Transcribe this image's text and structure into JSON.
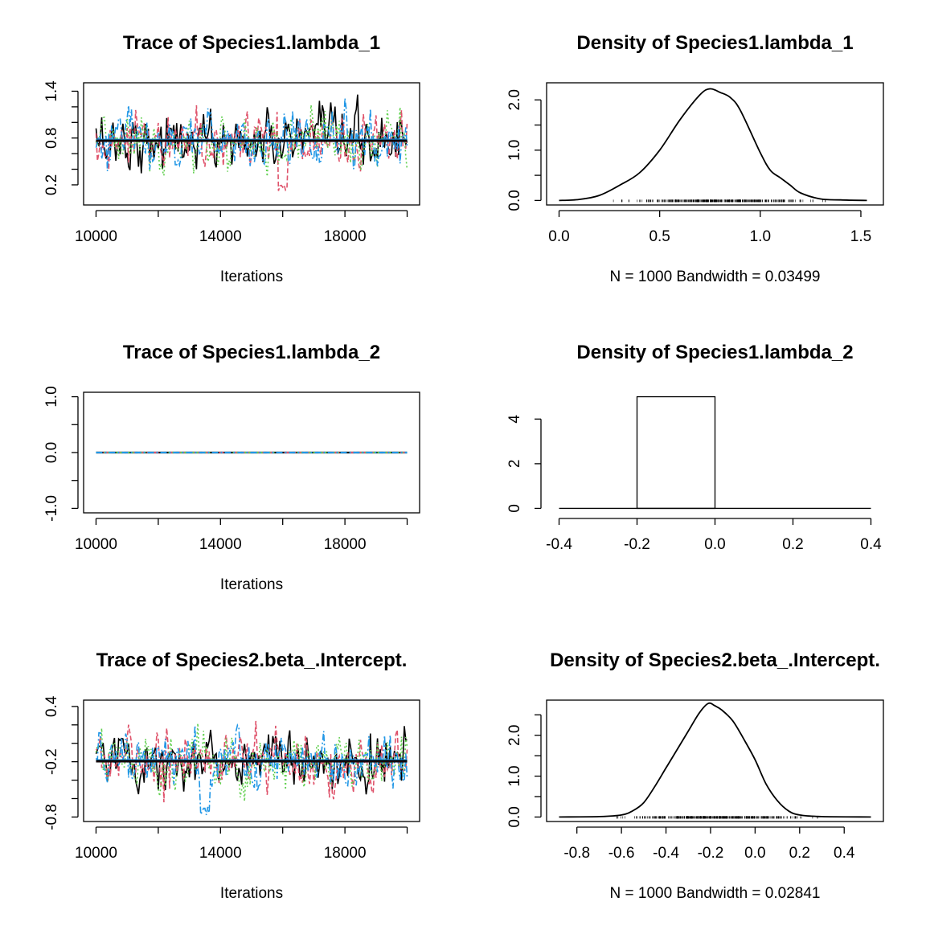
{
  "colors": {
    "chain1": "#000000",
    "chain2": "#DF536B",
    "chain3": "#61D04F",
    "chain4": "#2297E6"
  },
  "chart_data": [
    {
      "type": "line",
      "title": "Trace of Species1.lambda_1",
      "xlabel": "Iterations",
      "xlim": [
        10000,
        20000
      ],
      "ylim": [
        0.0,
        1.45
      ],
      "xticks": [
        10000,
        14000,
        18000
      ],
      "yticks": [
        0.2,
        0.8,
        1.4
      ],
      "yminor": [
        0.4,
        0.6,
        1.0,
        1.2
      ],
      "xtick_labels": [
        "10000",
        "14000",
        "18000"
      ],
      "ytick_labels": [
        "0.2",
        "0.8",
        "1.4"
      ],
      "trace": {
        "chains": 4,
        "mean": 0.76,
        "sd": 0.17,
        "low": 0.1,
        "high": 1.43,
        "dip_chain": 2,
        "dip_x": 16000,
        "dip_y": 0.1
      },
      "smooth_mean": 0.77
    },
    {
      "type": "line",
      "title": "Density of Species1.lambda_1",
      "xlabel": "N = 1000   Bandwidth = 0.03499",
      "xlim": [
        0.0,
        1.55
      ],
      "ylim": [
        0.0,
        2.25
      ],
      "xticks": [
        0.0,
        0.5,
        1.0,
        1.5
      ],
      "yticks": [
        0.0,
        1.0,
        2.0
      ],
      "yminor": [
        0.5,
        1.5
      ],
      "xtick_labels": [
        "0.0",
        "0.5",
        "1.0",
        "1.5"
      ],
      "ytick_labels": [
        "0.0",
        "1.0",
        "2.0"
      ],
      "x": [
        0.0,
        0.1,
        0.2,
        0.3,
        0.4,
        0.5,
        0.6,
        0.7,
        0.75,
        0.8,
        0.85,
        0.9,
        1.0,
        1.05,
        1.1,
        1.15,
        1.2,
        1.3,
        1.4,
        1.53
      ],
      "y": [
        0.0,
        0.02,
        0.1,
        0.3,
        0.55,
        1.0,
        1.6,
        2.1,
        2.22,
        2.15,
        2.05,
        1.8,
        0.95,
        0.6,
        0.45,
        0.3,
        0.15,
        0.03,
        0.01,
        0.0
      ],
      "rug": {
        "low": 0.27,
        "high": 1.33
      }
    },
    {
      "type": "line",
      "title": "Trace of Species1.lambda_2",
      "xlabel": "Iterations",
      "xlim": [
        10000,
        20000
      ],
      "ylim": [
        -1.0,
        1.0
      ],
      "xticks": [
        10000,
        14000,
        18000
      ],
      "yticks": [
        -1.0,
        0.0,
        1.0
      ],
      "yminor": [
        -0.5,
        0.5
      ],
      "xtick_labels": [
        "10000",
        "14000",
        "18000"
      ],
      "ytick_labels": [
        "-1.0",
        "0.0",
        "1.0"
      ],
      "constant": 0.0
    },
    {
      "type": "bar",
      "title": "Density of Species1.lambda_2",
      "xlim": [
        -0.4,
        0.4
      ],
      "ylim": [
        0,
        5
      ],
      "xticks": [
        -0.4,
        -0.2,
        0.0,
        0.2,
        0.4
      ],
      "yticks": [
        0,
        2,
        4
      ],
      "xtick_labels": [
        "-0.4",
        "-0.2",
        "0.0",
        "0.2",
        "0.4"
      ],
      "ytick_labels": [
        "0",
        "2",
        "4"
      ],
      "bins": [
        {
          "x0": -0.2,
          "x1": 0.0,
          "value": 5
        }
      ]
    },
    {
      "type": "line",
      "title": "Trace of Species2.beta_.Intercept.",
      "xlabel": "Iterations",
      "xlim": [
        10000,
        20000
      ],
      "ylim": [
        -0.8,
        0.42
      ],
      "xticks": [
        10000,
        14000,
        18000
      ],
      "yticks": [
        -0.8,
        -0.2,
        0.4
      ],
      "yminor": [
        -0.6,
        -0.4,
        0.0,
        0.2
      ],
      "xtick_labels": [
        "10000",
        "14000",
        "18000"
      ],
      "ytick_labels": [
        "-0.8",
        "-0.2",
        "0.4"
      ],
      "trace": {
        "chains": 4,
        "mean": -0.19,
        "sd": 0.14,
        "low": -0.79,
        "high": 0.4,
        "dip_chain": 4,
        "dip_x": 13500,
        "dip_y": -0.79
      },
      "smooth_mean": -0.19
    },
    {
      "type": "line",
      "title": "Density of Species2.beta_.Intercept.",
      "xlabel": "N = 1000   Bandwidth = 0.02841",
      "xlim": [
        -0.88,
        0.52
      ],
      "ylim": [
        0.0,
        2.75
      ],
      "xticks": [
        -0.8,
        -0.6,
        -0.4,
        -0.2,
        0.0,
        0.2,
        0.4
      ],
      "yticks": [
        0.0,
        1.0,
        2.0
      ],
      "yminor": [
        0.5,
        1.5,
        2.5
      ],
      "xtick_labels": [
        "-0.8",
        "-0.6",
        "-0.4",
        "-0.2",
        "0.0",
        "0.2",
        "0.4"
      ],
      "ytick_labels": [
        "0.0",
        "1.0",
        "2.0"
      ],
      "x": [
        -0.88,
        -0.7,
        -0.6,
        -0.55,
        -0.5,
        -0.45,
        -0.4,
        -0.35,
        -0.3,
        -0.25,
        -0.21,
        -0.18,
        -0.15,
        -0.1,
        -0.05,
        0.0,
        0.05,
        0.1,
        0.15,
        0.2,
        0.3,
        0.52
      ],
      "y": [
        0.0,
        0.01,
        0.05,
        0.15,
        0.35,
        0.75,
        1.2,
        1.65,
        2.1,
        2.55,
        2.78,
        2.72,
        2.62,
        2.35,
        1.9,
        1.4,
        0.8,
        0.4,
        0.15,
        0.05,
        0.01,
        0.0
      ],
      "rug": {
        "low": -0.62,
        "high": 0.28
      }
    }
  ]
}
